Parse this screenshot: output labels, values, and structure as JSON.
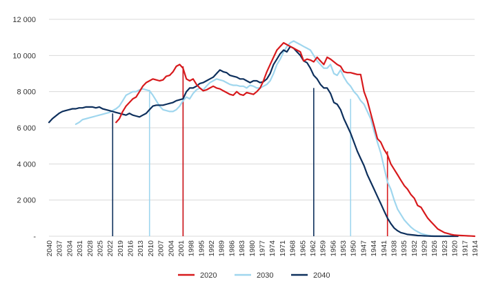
{
  "chart_data": {
    "type": "line",
    "title": "",
    "xlabel": "",
    "ylabel": "",
    "ylim": [
      0,
      12000
    ],
    "y_ticks": [
      {
        "value": 0,
        "label": "-"
      },
      {
        "value": 2000,
        "label": "2 000"
      },
      {
        "value": 4000,
        "label": "4 000"
      },
      {
        "value": 6000,
        "label": "6 000"
      },
      {
        "value": 8000,
        "label": "8 000"
      },
      {
        "value": 10000,
        "label": "10 000"
      },
      {
        "value": 12000,
        "label": "12 000"
      }
    ],
    "grid": "horizontal",
    "legend_position": "bottom-center",
    "x_tick_labels": [
      "2040",
      "2037",
      "2034",
      "2031",
      "2028",
      "2025",
      "2022",
      "2019",
      "2016",
      "2013",
      "2010",
      "2007",
      "2004",
      "2001",
      "1998",
      "1995",
      "1992",
      "1989",
      "1986",
      "1983",
      "1980",
      "1977",
      "1974",
      "1971",
      "1968",
      "1965",
      "1962",
      "1959",
      "1956",
      "1953",
      "1950",
      "1947",
      "1944",
      "1941",
      "1938",
      "1935",
      "1932",
      "1929",
      "1926",
      "1923",
      "1920",
      "1917",
      "1914"
    ],
    "series": [
      {
        "name": "2020",
        "color": "#d7191c",
        "x_start": 2020,
        "x_end": 1913,
        "values": [
          6300,
          6500,
          6900,
          7200,
          7400,
          7600,
          7700,
          8000,
          8300,
          8500,
          8600,
          8700,
          8650,
          8600,
          8650,
          8850,
          8900,
          9100,
          9400,
          9500,
          9300,
          8700,
          8600,
          8700,
          8400,
          8200,
          8050,
          8100,
          8200,
          8300,
          8200,
          8150,
          8050,
          7950,
          7850,
          7800,
          8000,
          7850,
          7800,
          7950,
          7900,
          7850,
          8000,
          8200,
          8600,
          9100,
          9500,
          9900,
          10300,
          10500,
          10700,
          10600,
          10500,
          10400,
          10300,
          10200,
          9700,
          9800,
          9750,
          9650,
          9900,
          9700,
          9500,
          9900,
          9800,
          9650,
          9500,
          9400,
          9100,
          9050,
          9050,
          9000,
          8950,
          8950,
          8000,
          7500,
          6800,
          6100,
          5400,
          5200,
          4800,
          4500,
          4000,
          3700,
          3400,
          3100,
          2800,
          2600,
          2300,
          2100,
          1700,
          1600,
          1300,
          1000,
          800,
          600,
          400,
          300,
          200,
          150,
          100,
          60,
          50,
          40,
          30,
          20,
          10,
          0
        ]
      },
      {
        "name": "2030",
        "color": "#9fd6ee",
        "x_start": 2032,
        "x_end": 1920,
        "values": [
          6200,
          6300,
          6450,
          6500,
          6550,
          6600,
          6650,
          6700,
          6750,
          6800,
          6850,
          6950,
          7050,
          7200,
          7500,
          7800,
          7900,
          8000,
          8000,
          8100,
          8150,
          8100,
          8050,
          7800,
          7500,
          7200,
          7000,
          6950,
          6900,
          6900,
          7000,
          7200,
          7500,
          7700,
          7600,
          7900,
          8100,
          8200,
          8100,
          8300,
          8500,
          8600,
          8700,
          8650,
          8600,
          8500,
          8400,
          8350,
          8350,
          8300,
          8300,
          8200,
          8350,
          8300,
          8200,
          8200,
          8300,
          8400,
          8600,
          9000,
          9500,
          9800,
          10200,
          10500,
          10700,
          10800,
          10700,
          10600,
          10500,
          10400,
          10300,
          10000,
          9700,
          9500,
          9300,
          9300,
          9500,
          9000,
          8900,
          9200,
          8800,
          8500,
          8300,
          8000,
          7800,
          7500,
          7300,
          6900,
          6500,
          5800,
          5200,
          4600,
          3800,
          3000,
          2600,
          2000,
          1500,
          1200,
          900,
          700,
          500,
          350,
          250,
          150,
          100,
          50,
          20,
          10,
          5,
          0,
          0,
          0,
          0
        ]
      },
      {
        "name": "2040",
        "color": "#0d2f5c",
        "x_start": 2040,
        "x_end": 1918,
        "values": [
          6300,
          6500,
          6650,
          6800,
          6900,
          6950,
          7000,
          7050,
          7050,
          7100,
          7100,
          7150,
          7150,
          7150,
          7100,
          7150,
          7050,
          7000,
          6950,
          6900,
          6850,
          6800,
          6750,
          6700,
          6800,
          6700,
          6650,
          6600,
          6700,
          6800,
          7000,
          7200,
          7250,
          7250,
          7250,
          7300,
          7350,
          7400,
          7500,
          7550,
          7600,
          8000,
          8200,
          8200,
          8300,
          8450,
          8500,
          8600,
          8700,
          8800,
          9000,
          9200,
          9100,
          9050,
          8900,
          8850,
          8800,
          8700,
          8700,
          8600,
          8500,
          8600,
          8600,
          8500,
          8550,
          8700,
          9000,
          9500,
          9800,
          10100,
          10300,
          10200,
          10500,
          10400,
          10200,
          10000,
          9700,
          9600,
          9300,
          8900,
          8700,
          8400,
          8200,
          8200,
          7900,
          7400,
          7300,
          7000,
          6500,
          6100,
          5700,
          5200,
          4700,
          4300,
          3900,
          3400,
          3000,
          2600,
          2200,
          1800,
          1400,
          1000,
          700,
          450,
          300,
          200,
          150,
          100,
          80,
          60,
          40,
          30,
          20,
          10,
          5,
          0,
          0,
          0,
          0,
          0,
          0,
          0,
          0
        ]
      }
    ],
    "reference_lines": [
      {
        "series": "2040",
        "x": 2021,
        "value": 6800
      },
      {
        "series": "2030",
        "x": 2010,
        "value": 8100
      },
      {
        "series": "2040",
        "x": 2000,
        "value": 9400
      },
      {
        "series": "2020",
        "x": 2000,
        "value": 9400
      },
      {
        "series": "2040",
        "x": 1961,
        "value": 8200
      },
      {
        "series": "2030",
        "x": 1950,
        "value": 7600
      },
      {
        "series": "2020",
        "x": 1939,
        "value": 4700
      }
    ]
  }
}
